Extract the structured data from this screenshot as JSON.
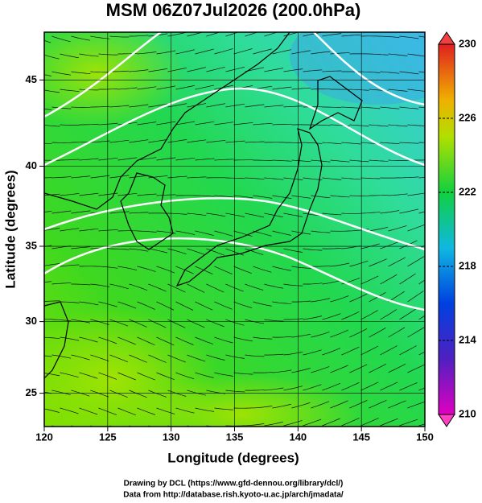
{
  "title": "MSM 06Z07Jul2026 (200.0hPa)",
  "map": {
    "xlabel": "Longitude (degrees)",
    "ylabel": "Latitude  (degrees)",
    "xlim": [
      120,
      150
    ],
    "ylim": [
      22.6,
      47.6
    ],
    "xticks": [
      120,
      125,
      130,
      135,
      140,
      145,
      150
    ],
    "yticks": [
      25,
      30,
      35,
      40,
      45
    ]
  },
  "colorbar": {
    "lim": [
      210,
      230
    ],
    "ticks": [
      210,
      214,
      218,
      222,
      226,
      230
    ]
  },
  "footer": [
    "Drawing by DCL (https://www.gfd-dennou.org/library/dcl/)",
    "Data from http://database.rish.kyoto-u.ac.jp/arch/jmadata/"
  ]
}
